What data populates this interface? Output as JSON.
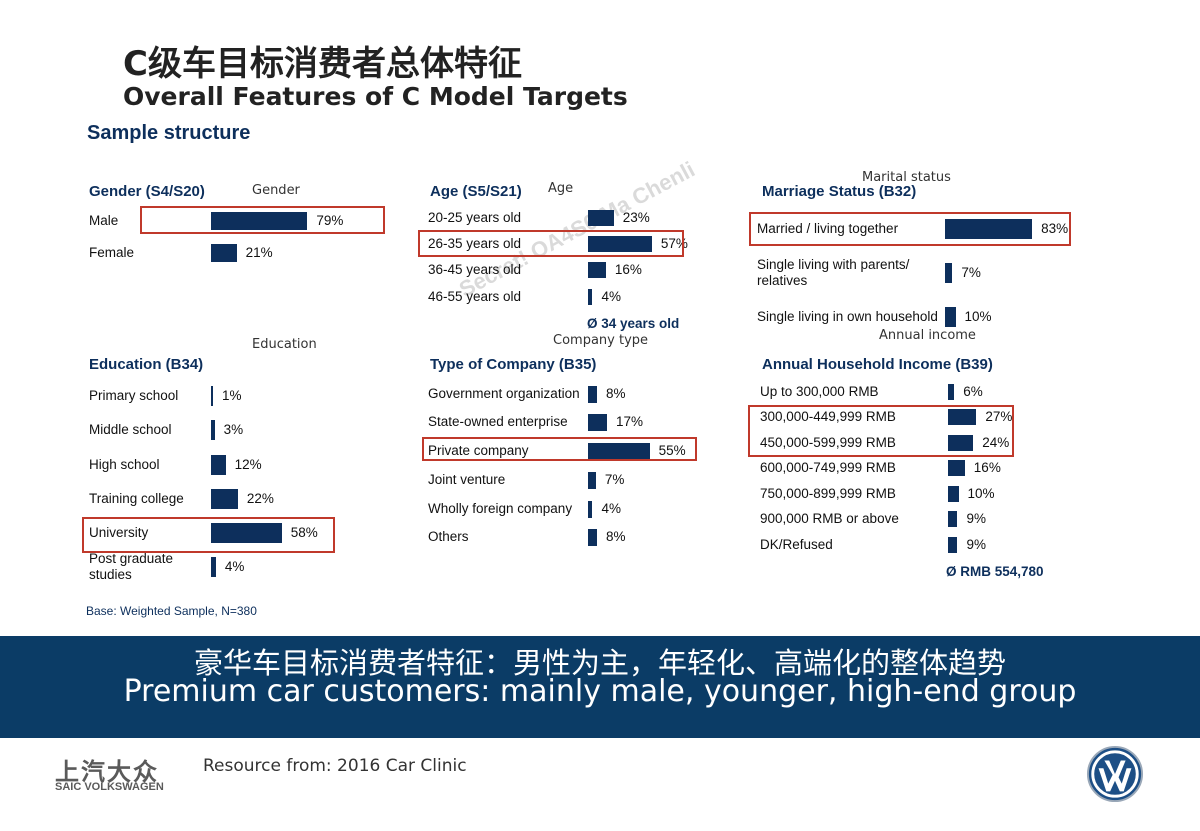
{
  "title_cn": "C级车目标消费者总体特征",
  "title_en": "Overall Features of C Model Targets",
  "subtitle": "Sample structure",
  "watermark": "Secret! OA4S0 Ma Chenli",
  "chart_data": [
    {
      "type": "bar",
      "orientation": "horizontal",
      "title": "Gender (S4/S20)",
      "note": "Gender",
      "categories": [
        "Male",
        "Female"
      ],
      "values": [
        79,
        21
      ],
      "labels": [
        "79%",
        "21%"
      ],
      "highlight": [
        "Male"
      ]
    },
    {
      "type": "bar",
      "orientation": "horizontal",
      "title": "Age (S5/S21)",
      "note": "Age",
      "categories": [
        "20-25 years old",
        "26-35 years old",
        "36-45 years old",
        "46-55 years old"
      ],
      "values": [
        23,
        57,
        16,
        4
      ],
      "labels": [
        "23%",
        "57%",
        "16%",
        "4%"
      ],
      "average": "Ø 34 years old",
      "highlight": [
        "26-35 years old"
      ]
    },
    {
      "type": "bar",
      "orientation": "horizontal",
      "title": "Marriage Status (B32)",
      "note": "Marital status",
      "categories": [
        "Married / living together",
        "Single living with parents/ relatives",
        "Single living in own household"
      ],
      "values": [
        83,
        7,
        10
      ],
      "labels": [
        "83%",
        "7%",
        "10%"
      ],
      "highlight": [
        "Married / living together"
      ]
    },
    {
      "type": "bar",
      "orientation": "horizontal",
      "title": "Education (B34)",
      "note": "Education",
      "categories": [
        "Primary school",
        "Middle school",
        "High school",
        "Training college",
        "University",
        "Post graduate studies"
      ],
      "values": [
        1,
        3,
        12,
        22,
        58,
        4
      ],
      "labels": [
        "1%",
        "3%",
        "12%",
        "22%",
        "58%",
        "4%"
      ],
      "highlight": [
        "University"
      ]
    },
    {
      "type": "bar",
      "orientation": "horizontal",
      "title": "Type of Company (B35)",
      "note": "Company type",
      "categories": [
        "Government organization",
        "State-owned enterprise",
        "Private company",
        "Joint venture",
        "Wholly foreign company",
        "Others"
      ],
      "values": [
        8,
        17,
        55,
        7,
        4,
        8
      ],
      "labels": [
        "8%",
        "17%",
        "55%",
        "7%",
        "4%",
        "8%"
      ],
      "highlight": [
        "Private company"
      ]
    },
    {
      "type": "bar",
      "orientation": "horizontal",
      "title": "Annual Household Income (B39)",
      "note": "Annual income",
      "categories": [
        "Up to 300,000 RMB",
        "300,000-449,999 RMB",
        "450,000-599,999 RMB",
        "600,000-749,999 RMB",
        "750,000-899,999 RMB",
        "900,000 RMB or above",
        "DK/Refused"
      ],
      "values": [
        6,
        27,
        24,
        16,
        10,
        9,
        9
      ],
      "labels": [
        "6%",
        "27%",
        "24%",
        "16%",
        "10%",
        "9%",
        "9%"
      ],
      "average": "Ø RMB 554,780",
      "highlight": [
        "300,000-449,999 RMB",
        "450,000-599,999 RMB"
      ]
    }
  ],
  "base_note": "Base: Weighted Sample, N=380",
  "banner": {
    "cn": "豪华车目标消费者特征：男性为主，年轻化、高端化的整体趋势",
    "en": "Premium car customers: mainly male, younger, high-end group"
  },
  "footer": {
    "logo_cn": "上汽大众",
    "logo_en": "SAIC VOLKSWAGEN",
    "resource": "Resource from: 2016 Car Clinic"
  },
  "colors": {
    "bar": "#0d2f5c",
    "highlight": "#c0392b",
    "banner": "#0b3c66"
  }
}
